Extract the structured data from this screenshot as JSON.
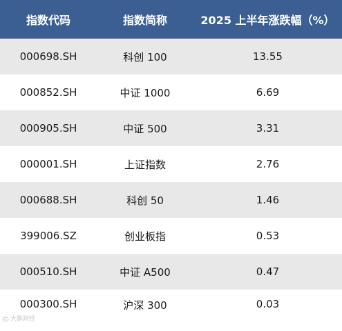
{
  "colors": {
    "header_bg": "#3b5f93",
    "header_text": "#ffffff",
    "row_alt_bg": "#e8e8e8",
    "row_bg": "#ffffff"
  },
  "table": {
    "headers": [
      "指数代码",
      "指数简称",
      "2025 上半年涨跌幅（%）"
    ],
    "rows": [
      [
        "000698.SH",
        "科创 100",
        "13.55"
      ],
      [
        "000852.SH",
        "中证 1000",
        "6.69"
      ],
      [
        "000905.SH",
        "中证 500",
        "3.31"
      ],
      [
        "000001.SH",
        "上证指数",
        "2.76"
      ],
      [
        "000688.SH",
        "科创 50",
        "1.46"
      ],
      [
        "399006.SZ",
        "创业板指",
        "0.53"
      ],
      [
        "000510.SH",
        "中证 A500",
        "0.47"
      ],
      [
        "000300.SH",
        "沪深 300",
        "0.03"
      ]
    ]
  },
  "watermark": {
    "text": "大鹏财经"
  }
}
